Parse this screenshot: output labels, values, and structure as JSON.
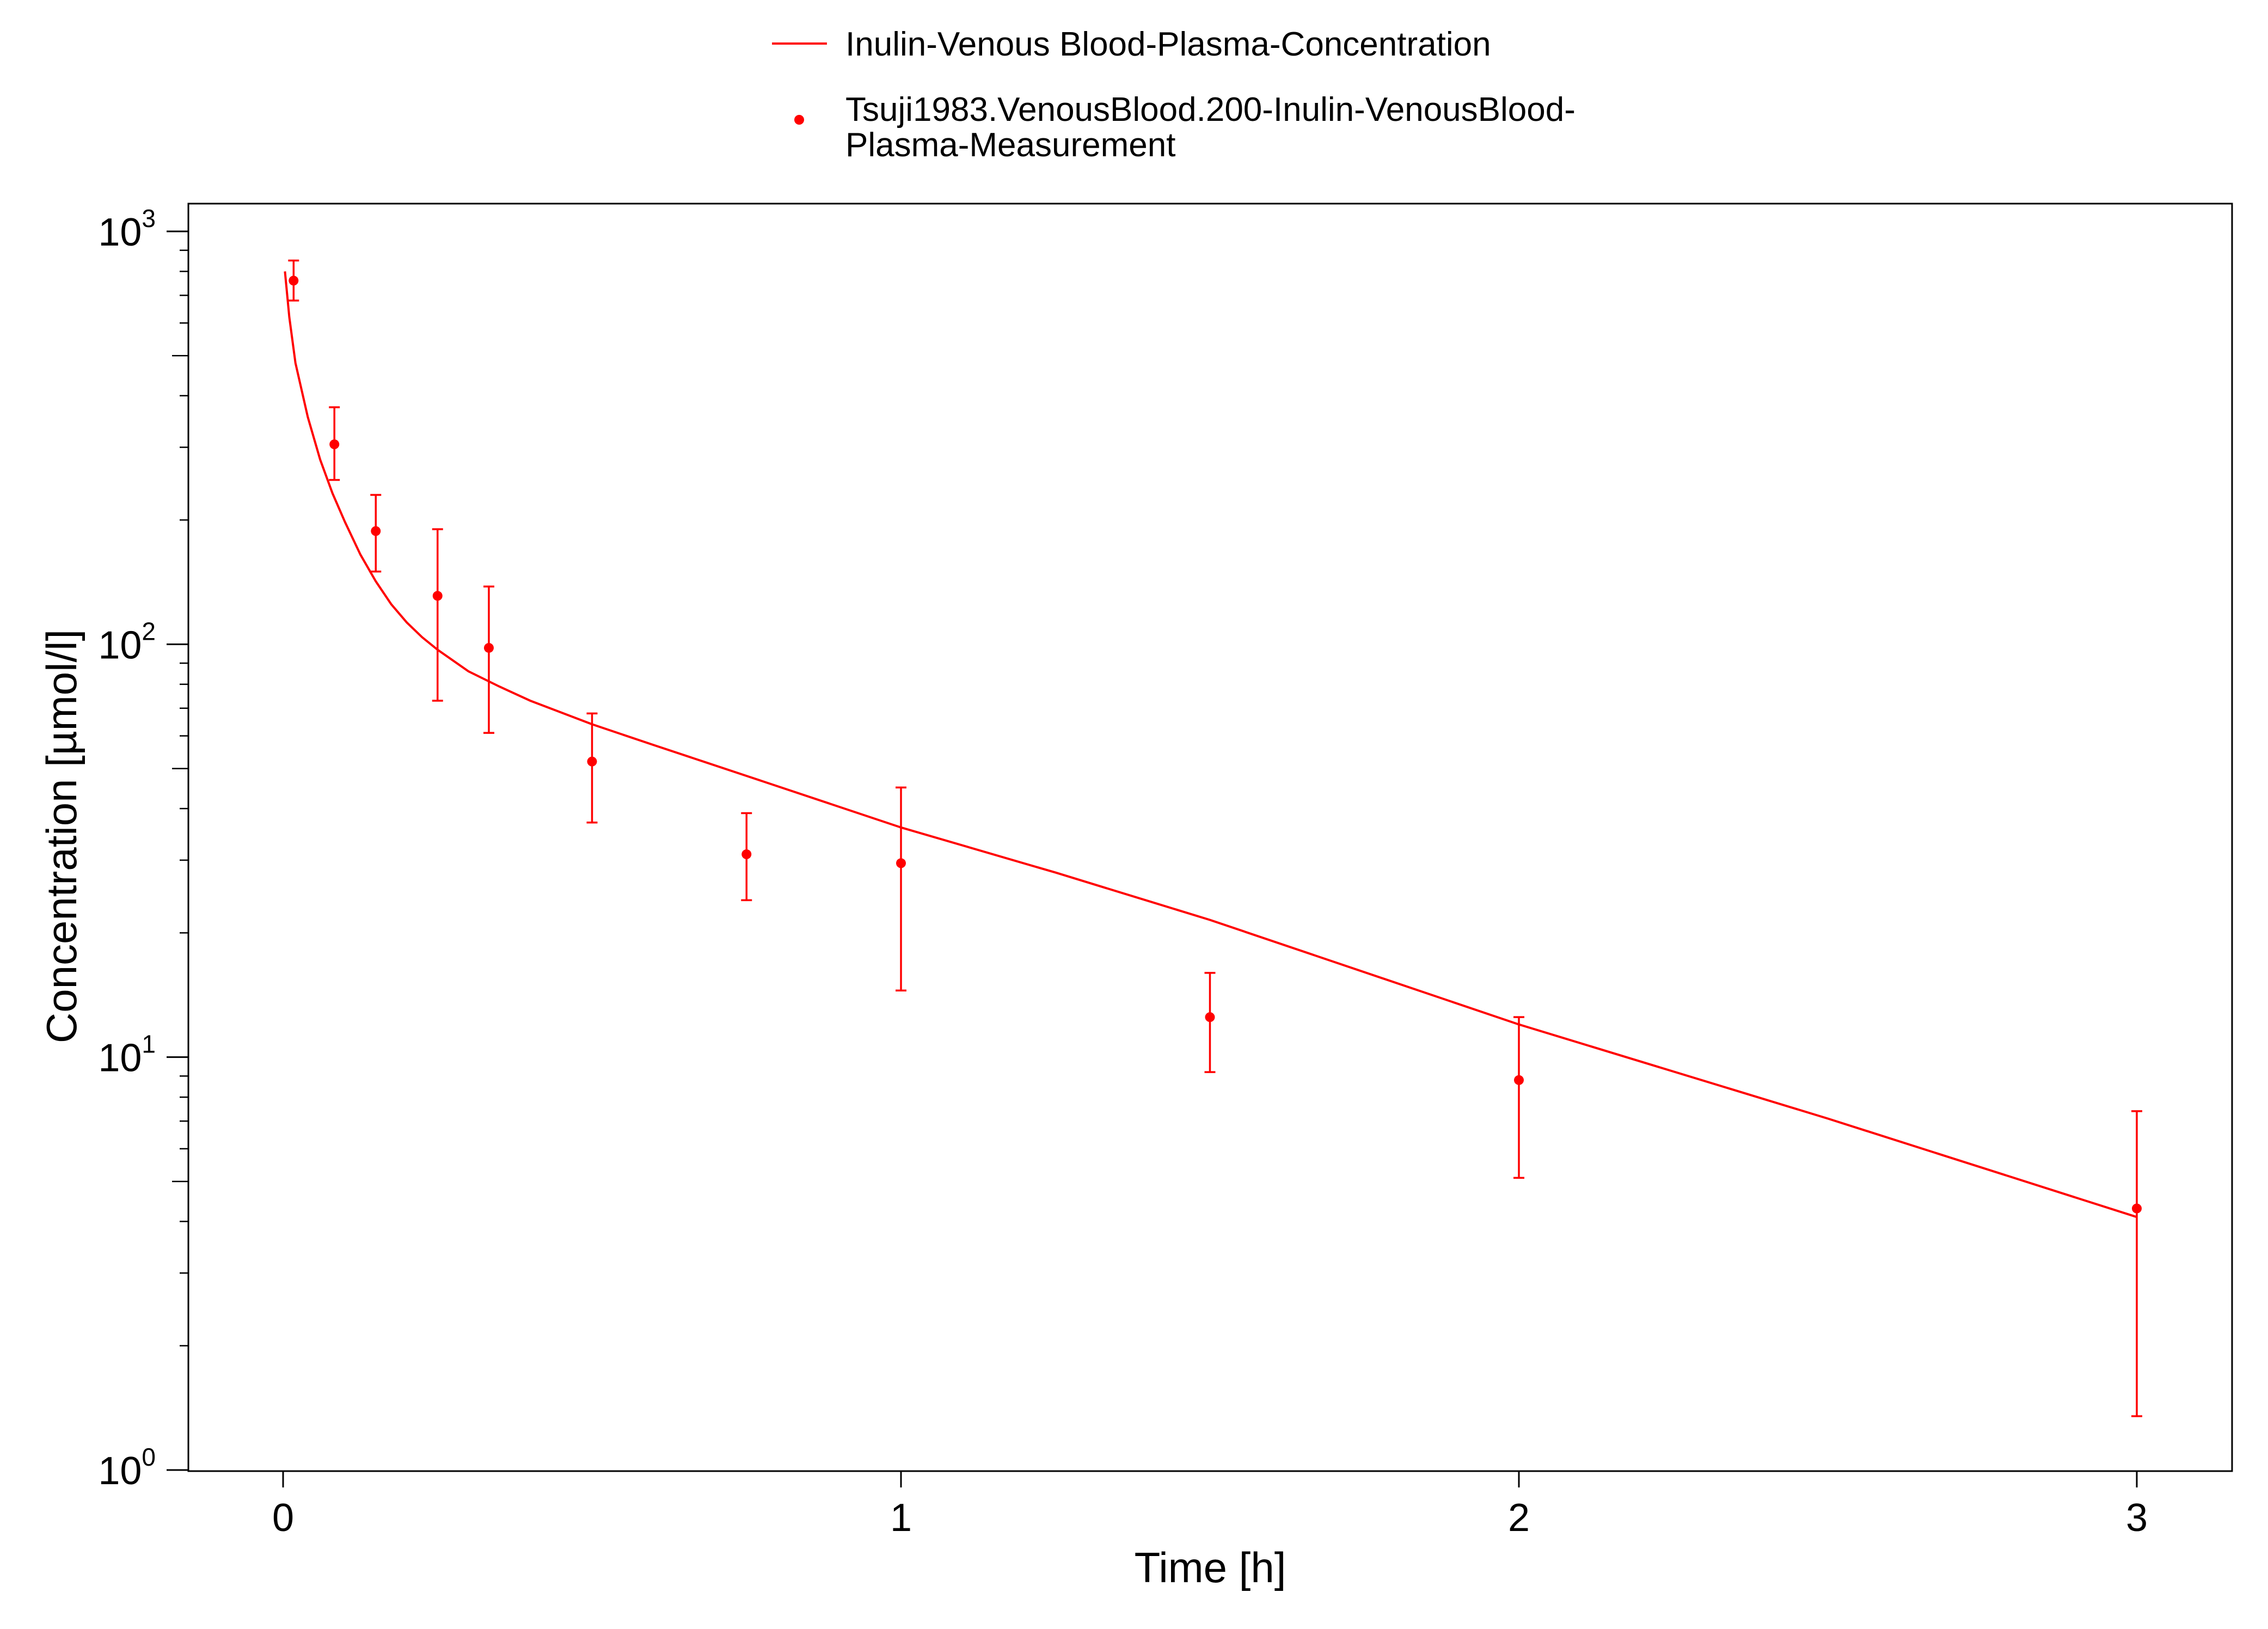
{
  "chart_data": {
    "type": "line",
    "title": "",
    "xlabel": "Time [h]",
    "ylabel": "Concentration [µmol/l]",
    "xlim": [
      -0.15,
      3.15
    ],
    "ylim": [
      1,
      1000
    ],
    "y_scale": "log",
    "grid": false,
    "legend_position": "top-center",
    "x_ticks": [
      {
        "value": 0,
        "label": "0"
      },
      {
        "value": 1,
        "label": "1"
      },
      {
        "value": 2,
        "label": "2"
      },
      {
        "value": 3,
        "label": "3"
      }
    ],
    "y_ticks": [
      {
        "value": 1,
        "base": "10",
        "exp": "0"
      },
      {
        "value": 10,
        "base": "10",
        "exp": "1"
      },
      {
        "value": 100,
        "base": "10",
        "exp": "2"
      },
      {
        "value": 1000,
        "base": "10",
        "exp": "3"
      }
    ],
    "series": [
      {
        "name": "Inulin-Venous Blood-Plasma-Concentration",
        "kind": "line",
        "color": "#ff0000",
        "x": [
          0.003,
          0.01,
          0.02,
          0.04,
          0.06,
          0.08,
          0.1,
          0.125,
          0.15,
          0.175,
          0.2,
          0.225,
          0.25,
          0.3,
          0.35,
          0.4,
          0.5,
          0.6,
          0.75,
          1.0,
          1.25,
          1.5,
          2.0,
          2.5,
          3.0
        ],
        "y": [
          800,
          620,
          480,
          355,
          280,
          232,
          198,
          165,
          142,
          125,
          113,
          104,
          97,
          86,
          79,
          73,
          64,
          57,
          48,
          36,
          28,
          21.5,
          12,
          7.1,
          4.1
        ]
      },
      {
        "name": "Tsuji1983.VenousBlood.200-Inulin-VenousBlood-Plasma-Measurement",
        "name_lines": [
          "Tsuji1983.VenousBlood.200-Inulin-VenousBlood-",
          "Plasma-Measurement"
        ],
        "kind": "scatter_errorbar",
        "color": "#ff0000",
        "points": [
          {
            "x": 0.017,
            "y": 760,
            "lo": 680,
            "hi": 850
          },
          {
            "x": 0.083,
            "y": 305,
            "lo": 250,
            "hi": 375
          },
          {
            "x": 0.15,
            "y": 188,
            "lo": 150,
            "hi": 230
          },
          {
            "x": 0.25,
            "y": 131,
            "lo": 73,
            "hi": 190
          },
          {
            "x": 0.333,
            "y": 98,
            "lo": 61,
            "hi": 138
          },
          {
            "x": 0.5,
            "y": 52,
            "lo": 37,
            "hi": 68
          },
          {
            "x": 0.75,
            "y": 31,
            "lo": 24,
            "hi": 39
          },
          {
            "x": 1.0,
            "y": 29.5,
            "lo": 14.5,
            "hi": 45
          },
          {
            "x": 1.5,
            "y": 12.5,
            "lo": 9.2,
            "hi": 16
          },
          {
            "x": 2.0,
            "y": 8.8,
            "lo": 5.1,
            "hi": 12.5
          },
          {
            "x": 3.0,
            "y": 4.3,
            "lo": 1.35,
            "hi": 7.4
          }
        ]
      }
    ]
  }
}
